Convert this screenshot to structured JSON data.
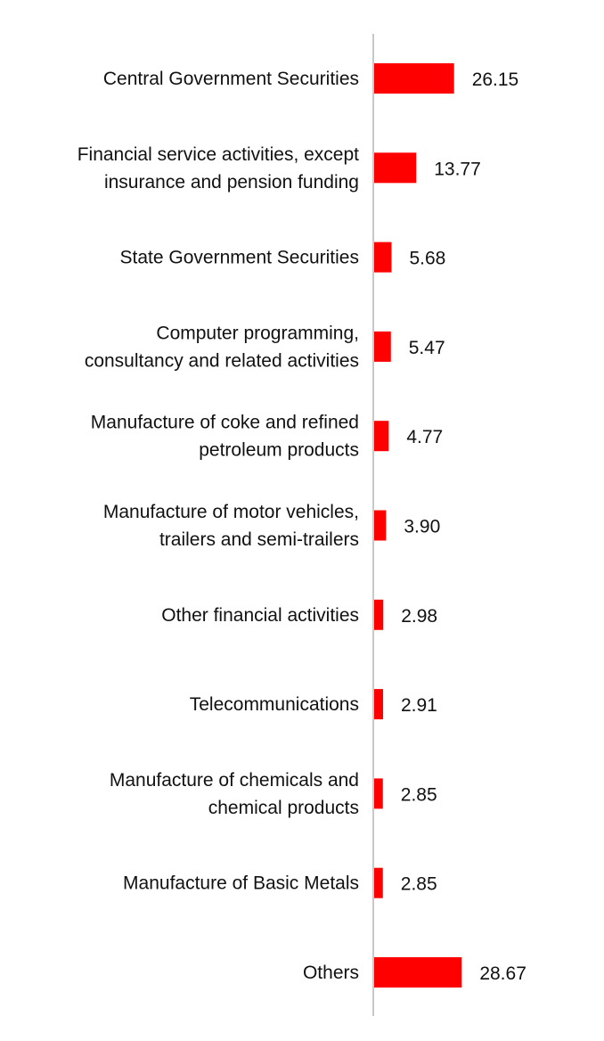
{
  "chart_data": {
    "type": "bar",
    "orientation": "horizontal",
    "title": "",
    "xlabel": "",
    "ylabel": "",
    "xlim": [
      0,
      30
    ],
    "grid": false,
    "bar_color": "#ff0000",
    "axis_color": "#c8c8c8",
    "categories": [
      [
        "Central Government Securities"
      ],
      [
        "Financial service activities, except",
        "insurance and pension funding"
      ],
      [
        "State Government Securities"
      ],
      [
        "Computer programming,",
        "consultancy and related activities"
      ],
      [
        "Manufacture of coke and refined",
        "petroleum products"
      ],
      [
        "Manufacture of motor vehicles,",
        "trailers and semi-trailers"
      ],
      [
        "Other financial activities"
      ],
      [
        "Telecommunications"
      ],
      [
        "Manufacture of chemicals and",
        "chemical products"
      ],
      [
        "Manufacture of Basic Metals"
      ],
      [
        "Others"
      ]
    ],
    "values": [
      26.15,
      13.77,
      5.68,
      5.47,
      4.77,
      3.9,
      2.98,
      2.91,
      2.85,
      2.85,
      28.67
    ],
    "value_labels": [
      "26.15",
      "13.77",
      "5.68",
      "5.47",
      "4.77",
      "3.90",
      "2.98",
      "2.91",
      "2.85",
      "2.85",
      "28.67"
    ]
  }
}
